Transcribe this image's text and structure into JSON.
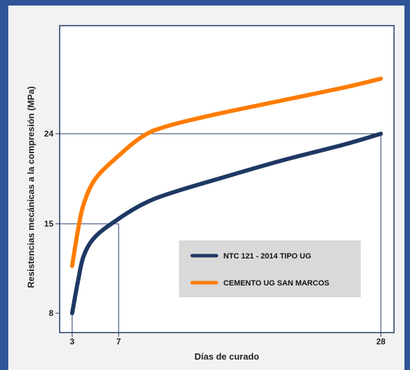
{
  "chart_data": {
    "type": "line",
    "xlabel": "Días de curado",
    "ylabel": "Resistencias mecánicas a la compresión (MPa)",
    "x_ticks": [
      3,
      7,
      28
    ],
    "y_ticks": [
      8,
      15,
      24
    ],
    "grid": false,
    "legend_position": "bottom-right",
    "reference_lines": [
      {
        "x": 7,
        "y": 15
      },
      {
        "x": 28,
        "y": 24
      }
    ],
    "series": [
      {
        "name": "NTC 121 - 2014 TIPO UG",
        "color": "#1f3864",
        "points": [
          [
            3,
            8
          ],
          [
            3.5,
            10.5
          ],
          [
            4,
            12.5
          ],
          [
            5,
            14
          ],
          [
            7,
            15.5
          ],
          [
            9,
            17
          ],
          [
            11,
            18
          ],
          [
            15,
            19.5
          ],
          [
            20,
            21.3
          ],
          [
            25,
            22.9
          ],
          [
            28,
            24
          ]
        ]
      },
      {
        "name": "CEMENTO UG SAN MARCOS",
        "color": "#ff7c00",
        "points": [
          [
            3,
            11.7
          ],
          [
            3.5,
            14.5
          ],
          [
            4,
            17
          ],
          [
            5,
            19.5
          ],
          [
            7,
            21.8
          ],
          [
            9,
            23.8
          ],
          [
            11,
            24.8
          ],
          [
            15,
            26
          ],
          [
            20,
            27.3
          ],
          [
            25,
            28.6
          ],
          [
            28,
            29.5
          ]
        ]
      }
    ]
  }
}
